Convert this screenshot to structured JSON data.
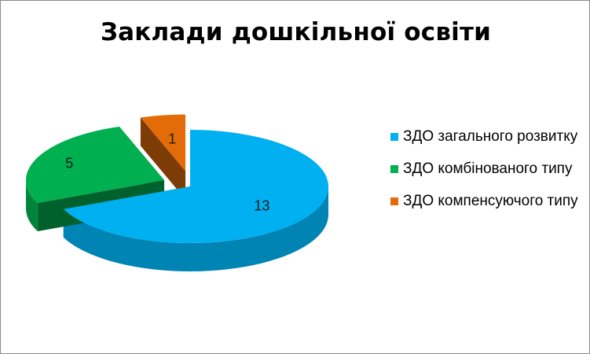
{
  "chart_data": {
    "type": "pie",
    "title": "Заклади дошкільної освіти",
    "categories": [
      "ЗДО загального розвитку",
      "ЗДО комбінованого типу",
      "ЗДО компенсуючого типу"
    ],
    "values": [
      13,
      5,
      1
    ],
    "colors": [
      "#00b0f0",
      "#00b050",
      "#e36c09"
    ],
    "exploded": [
      false,
      true,
      true
    ],
    "legend_position": "right",
    "three_d": true
  }
}
